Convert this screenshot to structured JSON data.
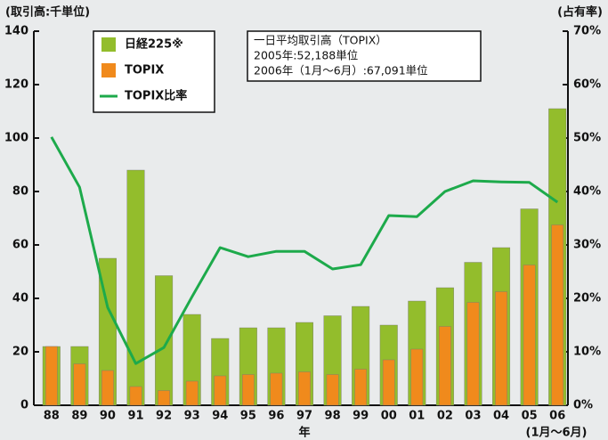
{
  "chart_data": {
    "type": "bar",
    "y_label": "(取引高:千単位)",
    "y2_label": "(占有率)",
    "x_label": "年",
    "x_note": "(1月〜6月)",
    "annotations": [
      "一日平均取引高（TOPIX）",
      "2005年:52,188単位",
      "2006年（1月〜6月）:67,091単位"
    ],
    "categories": [
      "88",
      "89",
      "90",
      "91",
      "92",
      "93",
      "94",
      "95",
      "96",
      "97",
      "98",
      "99",
      "00",
      "01",
      "02",
      "03",
      "04",
      "05",
      "06"
    ],
    "series": [
      {
        "name": "日経225※",
        "type": "bar",
        "color": "#93bd2c",
        "values": [
          22,
          22,
          55,
          88,
          48.5,
          34,
          25,
          29,
          29,
          31,
          33.5,
          37,
          30,
          39,
          44,
          53.5,
          59,
          73.5,
          111
        ]
      },
      {
        "name": "TOPIX",
        "type": "bar",
        "color": "#f08a1c",
        "values": [
          22,
          15.5,
          13,
          7,
          5.5,
          9,
          11,
          11.5,
          12,
          12.5,
          11.5,
          13.5,
          17,
          21,
          29.5,
          38.5,
          42.5,
          52.5,
          67.5
        ]
      },
      {
        "name": "TOPIX比率",
        "type": "line",
        "axis": "y2",
        "color": "#1daa4b",
        "values": [
          50.2,
          40.8,
          18.3,
          7.8,
          10.8,
          20.3,
          29.5,
          27.8,
          28.8,
          28.8,
          25.5,
          26.3,
          35.5,
          35.3,
          40,
          42,
          41.8,
          41.7,
          38
        ]
      }
    ],
    "ylim": [
      0,
      140
    ],
    "yticks": [
      0,
      20,
      40,
      60,
      80,
      100,
      120,
      140
    ],
    "y2lim": [
      0,
      70
    ],
    "y2ticks": [
      {
        "value": 0,
        "label": "0%"
      },
      {
        "value": 10,
        "label": "10%"
      },
      {
        "value": 20,
        "label": "20%"
      },
      {
        "value": 30,
        "label": "30%"
      },
      {
        "value": 40,
        "label": "40%"
      },
      {
        "value": 50,
        "label": "50%"
      },
      {
        "value": 60,
        "label": "60%"
      },
      {
        "value": 70,
        "label": "70%"
      }
    ]
  }
}
